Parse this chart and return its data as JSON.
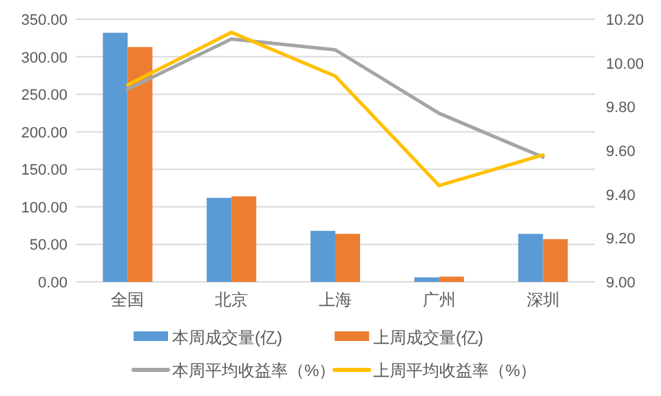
{
  "chart_data": {
    "type": "bar",
    "categories": [
      "全国",
      "北京",
      "上海",
      "广州",
      "深圳"
    ],
    "series": [
      {
        "name": "本周成交量(亿)",
        "color": "#5b9bd5",
        "values": [
          332,
          112,
          68,
          6,
          64
        ]
      },
      {
        "name": "上周成交量(亿)",
        "color": "#ed7d31",
        "values": [
          313,
          114,
          64,
          7,
          57
        ]
      },
      {
        "name": "本周平均收益率（%）",
        "type": "line",
        "axis": "y2",
        "color": "#a5a5a5",
        "values": [
          9.88,
          10.11,
          10.06,
          9.77,
          9.57
        ]
      },
      {
        "name": "上周平均收益率（%）",
        "type": "line",
        "axis": "y2",
        "color": "#ffc000",
        "values": [
          9.9,
          10.14,
          9.94,
          9.44,
          9.58
        ]
      }
    ],
    "ylim": [
      0,
      350
    ],
    "yticks": [
      {
        "value": 0,
        "label": "0.00"
      },
      {
        "value": 50,
        "label": "50.00"
      },
      {
        "value": 100,
        "label": "100.00"
      },
      {
        "value": 150,
        "label": "150.00"
      },
      {
        "value": 200,
        "label": "200.00"
      },
      {
        "value": 250,
        "label": "250.00"
      },
      {
        "value": 300,
        "label": "300.00"
      },
      {
        "value": 350,
        "label": "350.00"
      }
    ],
    "y2lim": [
      9.0,
      10.2
    ],
    "y2ticks": [
      {
        "value": 9.0,
        "label": "9.00"
      },
      {
        "value": 9.2,
        "label": "9.20"
      },
      {
        "value": 9.4,
        "label": "9.40"
      },
      {
        "value": 9.6,
        "label": "9.60"
      },
      {
        "value": 9.8,
        "label": "9.80"
      },
      {
        "value": 10.0,
        "label": "10.00"
      },
      {
        "value": 10.2,
        "label": "10.20"
      }
    ],
    "grid": "y",
    "legend": "bottom"
  }
}
